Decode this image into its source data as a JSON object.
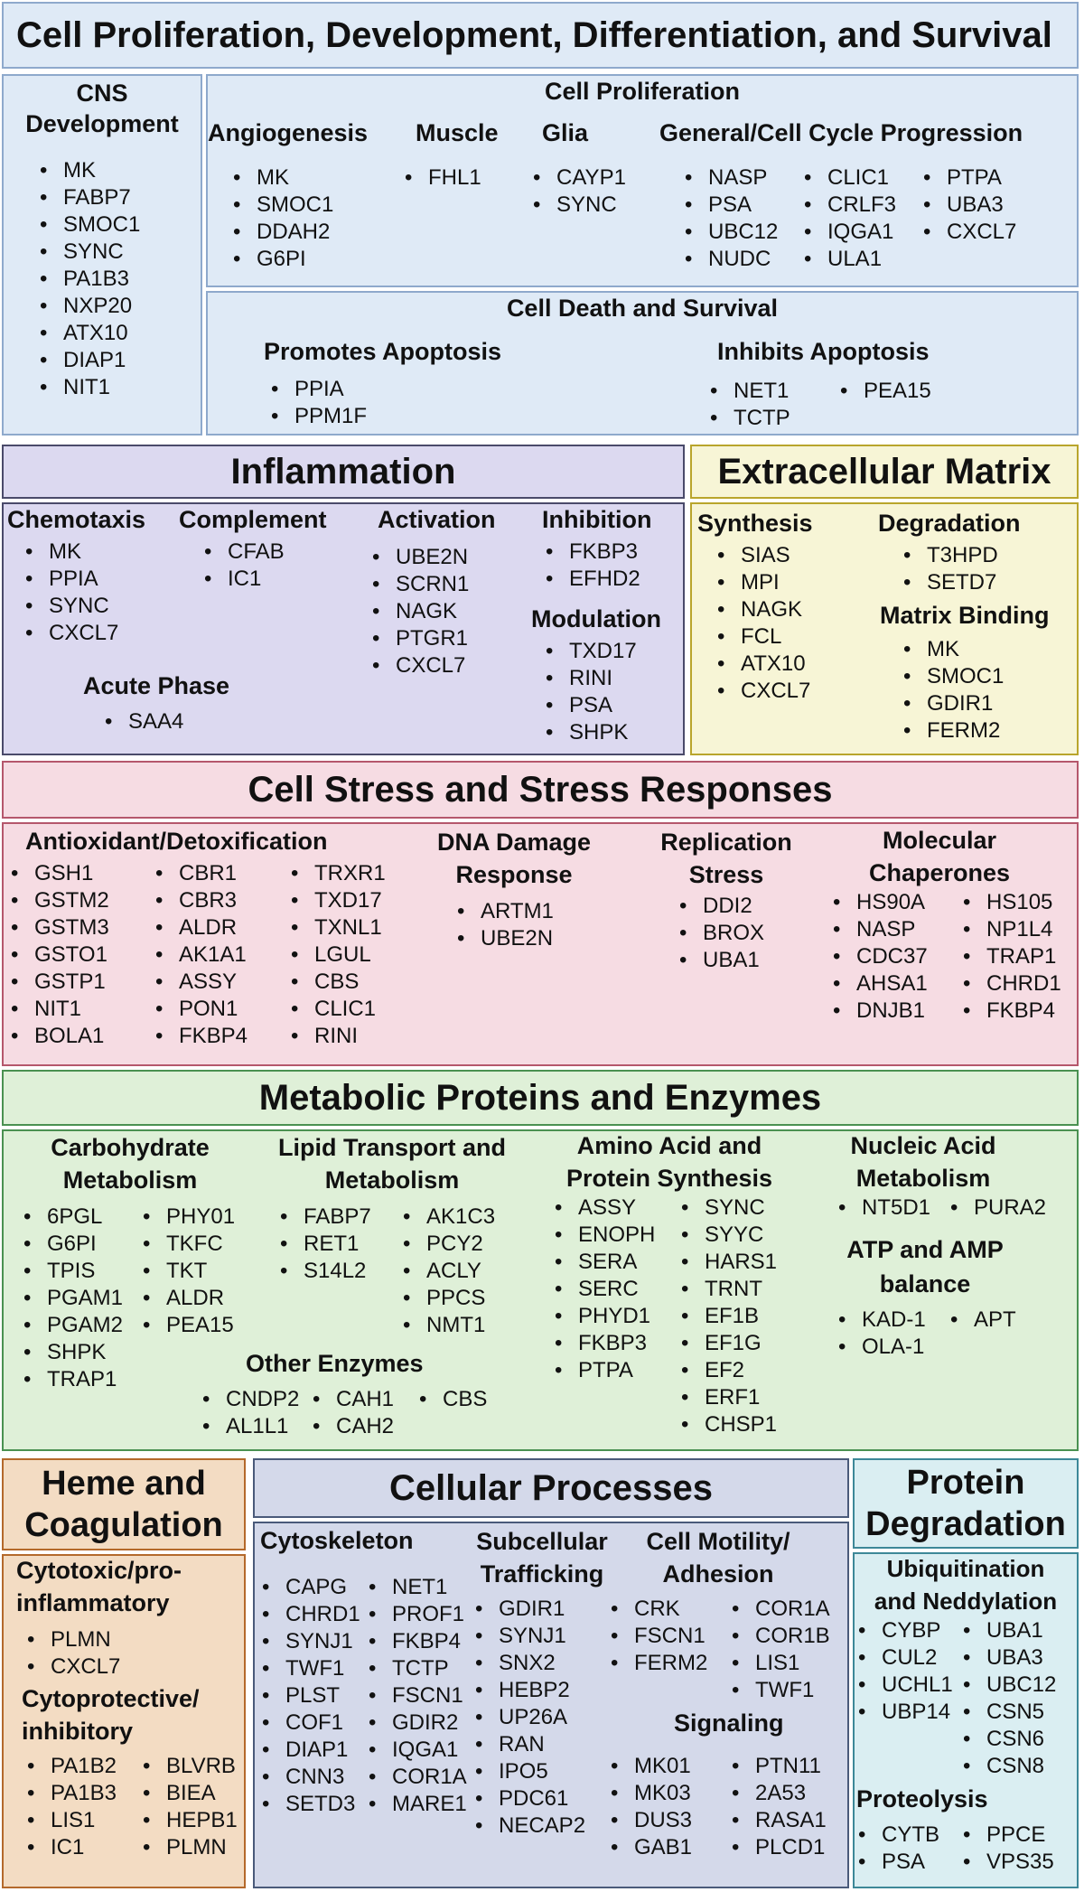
{
  "colors": {
    "proliferation": "#dfeaf6",
    "inflammation": "#dcd9f0",
    "ecm": "#f7f5d6",
    "stress": "#f6dce3",
    "metabolic": "#dff0d8",
    "heme": "#f3dcc3",
    "cellular": "#d4d9ea",
    "degradation": "#daeef2"
  },
  "prolif": {
    "title": "Cell Proliferation, Development, Differentiation, and Survival",
    "cns": {
      "heading": "CNS Development",
      "items": [
        "MK",
        "FABP7",
        "SMOC1",
        "SYNC",
        "PA1B3",
        "NXP20",
        "ATX10",
        "DIAP1",
        "NIT1"
      ]
    },
    "cell_prolif": {
      "heading": "Cell Proliferation",
      "angio": {
        "heading": "Angiogenesis",
        "items": [
          "MK",
          "SMOC1",
          "DDAH2",
          "G6PI"
        ]
      },
      "muscle": {
        "heading": "Muscle",
        "items": [
          "FHL1"
        ]
      },
      "glia": {
        "heading": "Glia",
        "items": [
          "CAYP1",
          "SYNC"
        ]
      },
      "general": {
        "heading": "General/Cell Cycle Progression",
        "col1": [
          "NASP",
          "PSA",
          "UBC12",
          "NUDC"
        ],
        "col2": [
          "CLIC1",
          "CRLF3",
          "IQGA1",
          "ULA1"
        ],
        "col3": [
          "PTPA",
          "UBA3",
          "CXCL7"
        ]
      }
    },
    "death": {
      "heading": "Cell Death and Survival",
      "promotes": {
        "heading": "Promotes Apoptosis",
        "items": [
          "PPIA",
          "PPM1F"
        ]
      },
      "inhibits": {
        "heading": "Inhibits Apoptosis",
        "col1": [
          "NET1",
          "TCTP"
        ],
        "col2": [
          "PEA15"
        ]
      }
    }
  },
  "inflammation": {
    "title": "Inflammation",
    "chemotaxis": {
      "heading": "Chemotaxis",
      "items": [
        "MK",
        "PPIA",
        "SYNC",
        "CXCL7"
      ]
    },
    "complement": {
      "heading": "Complement",
      "items": [
        "CFAB",
        "IC1"
      ]
    },
    "activation": {
      "heading": "Activation",
      "items": [
        "UBE2N",
        "SCRN1",
        "NAGK",
        "PTGR1",
        "CXCL7"
      ]
    },
    "inhibition": {
      "heading": "Inhibition",
      "items": [
        "FKBP3",
        "EFHD2"
      ]
    },
    "modulation": {
      "heading": "Modulation",
      "items": [
        "TXD17",
        "RINI",
        "PSA",
        "SHPK"
      ]
    },
    "acute": {
      "heading": "Acute Phase",
      "items": [
        "SAA4"
      ]
    }
  },
  "ecm": {
    "title": "Extracellular Matrix",
    "synthesis": {
      "heading": "Synthesis",
      "items": [
        "SIAS",
        "MPI",
        "NAGK",
        "FCL",
        "ATX10",
        "CXCL7"
      ]
    },
    "degradation": {
      "heading": "Degradation",
      "items": [
        "T3HPD",
        "SETD7"
      ]
    },
    "binding": {
      "heading": "Matrix Binding",
      "items": [
        "MK",
        "SMOC1",
        "GDIR1",
        "FERM2"
      ]
    }
  },
  "stress": {
    "title": "Cell Stress and Stress Responses",
    "antiox": {
      "heading": "Antioxidant/Detoxification",
      "col1": [
        "GSH1",
        "GSTM2",
        "GSTM3",
        "GSTO1",
        "GSTP1",
        "NIT1",
        "BOLA1"
      ],
      "col2": [
        "CBR1",
        "CBR3",
        "ALDR",
        "AK1A1",
        "ASSY",
        "PON1",
        "FKBP4"
      ],
      "col3": [
        "TRXR1",
        "TXD17",
        "TXNL1",
        "LGUL",
        "CBS",
        "CLIC1",
        "RINI"
      ]
    },
    "dna": {
      "heading1": "DNA Damage",
      "heading2": "Response",
      "items": [
        "ARTM1",
        "UBE2N"
      ]
    },
    "replication": {
      "heading1": "Replication",
      "heading2": "Stress",
      "items": [
        "DDI2",
        "BROX",
        "UBA1"
      ]
    },
    "chaperones": {
      "heading1": "Molecular",
      "heading2": "Chaperones",
      "col1": [
        "HS90A",
        "NASP",
        "CDC37",
        "AHSA1",
        "DNJB1"
      ],
      "col2": [
        "HS105",
        "NP1L4",
        "TRAP1",
        "CHRD1",
        "FKBP4"
      ]
    }
  },
  "metabolic": {
    "title": "Metabolic Proteins and Enzymes",
    "carb": {
      "heading1": "Carbohydrate",
      "heading2": "Metabolism",
      "col1": [
        "6PGL",
        "G6PI",
        "TPIS",
        "PGAM1",
        "PGAM2",
        "SHPK",
        "TRAP1"
      ],
      "col2": [
        "PHY01",
        "TKFC",
        "TKT",
        "ALDR",
        "PEA15"
      ]
    },
    "lipid": {
      "heading1": "Lipid Transport and",
      "heading2": "Metabolism",
      "col1": [
        "FABP7",
        "RET1",
        "S14L2"
      ],
      "col2": [
        "AK1C3",
        "PCY2",
        "ACLY",
        "PPCS",
        "NMT1"
      ]
    },
    "amino": {
      "heading1": "Amino Acid and",
      "heading2": "Protein Synthesis",
      "col1": [
        "ASSY",
        "ENOPH",
        "SERA",
        "SERC",
        "PHYD1",
        "FKBP3",
        "PTPA"
      ],
      "col2": [
        "SYNC",
        "SYYC",
        "HARS1",
        "TRNT",
        "EF1B",
        "EF1G",
        "EF2",
        "ERF1",
        "CHSP1"
      ]
    },
    "nucleic": {
      "heading1": "Nucleic Acid",
      "heading2": "Metabolism",
      "col1": [
        "NT5D1"
      ],
      "col2": [
        "PURA2"
      ]
    },
    "atp": {
      "heading1": "ATP and AMP",
      "heading2": "balance",
      "col1": [
        "KAD-1",
        "OLA-1"
      ],
      "col2": [
        "APT"
      ]
    },
    "other": {
      "heading": "Other Enzymes",
      "col1": [
        "CNDP2",
        "AL1L1"
      ],
      "col2": [
        "CAH1",
        "CAH2"
      ],
      "col3": [
        "CBS"
      ]
    }
  },
  "heme": {
    "title1": "Heme and",
    "title2": "Coagulation",
    "cytotoxic": {
      "heading1": "Cytotoxic/pro-",
      "heading2": "inflammatory",
      "items": [
        "PLMN",
        "CXCL7"
      ]
    },
    "cytoprotective": {
      "heading1": "Cytoprotective/",
      "heading2": "inhibitory",
      "col1": [
        "PA1B2",
        "PA1B3",
        "LIS1",
        "IC1"
      ],
      "col2": [
        "BLVRB",
        "BIEA",
        "HEPB1",
        "PLMN"
      ]
    }
  },
  "cellular": {
    "title": "Cellular Processes",
    "cyto": {
      "heading": "Cytoskeleton",
      "col1": [
        "CAPG",
        "CHRD1",
        "SYNJ1",
        "TWF1",
        "PLST",
        "COF1",
        "DIAP1",
        "CNN3",
        "SETD3"
      ],
      "col2": [
        "NET1",
        "PROF1",
        "FKBP4",
        "TCTP",
        "FSCN1",
        "GDIR2",
        "IQGA1",
        "COR1A",
        "MARE1"
      ]
    },
    "traff": {
      "heading1": "Subcellular",
      "heading2": "Trafficking",
      "items": [
        "GDIR1",
        "SYNJ1",
        "SNX2",
        "HEBP2",
        "UP26A",
        "RAN",
        "IPO5",
        "PDC61",
        "NECAP2"
      ]
    },
    "motility": {
      "heading1": "Cell Motility/",
      "heading2": "Adhesion",
      "col1": [
        "CRK",
        "FSCN1",
        "FERM2"
      ],
      "col2": [
        "COR1A",
        "COR1B",
        "LIS1",
        "TWF1"
      ]
    },
    "signaling": {
      "heading": "Signaling",
      "col1": [
        "MK01",
        "MK03",
        "DUS3",
        "GAB1"
      ],
      "col2": [
        "PTN11",
        "2A53",
        "RASA1",
        "PLCD1"
      ]
    }
  },
  "degradation": {
    "title1": "Protein",
    "title2": "Degradation",
    "ubiq": {
      "heading1": "Ubiquitination",
      "heading2": "and Neddylation",
      "col1": [
        "CYBP",
        "CUL2",
        "UCHL1",
        "UBP14"
      ],
      "col2": [
        "UBA1",
        "UBA3",
        "UBC12",
        "CSN5",
        "CSN6",
        "CSN8"
      ]
    },
    "proteo": {
      "heading": "Proteolysis",
      "col1": [
        "CYTB",
        "PSA"
      ],
      "col2": [
        "PPCE",
        "VPS35"
      ]
    }
  }
}
